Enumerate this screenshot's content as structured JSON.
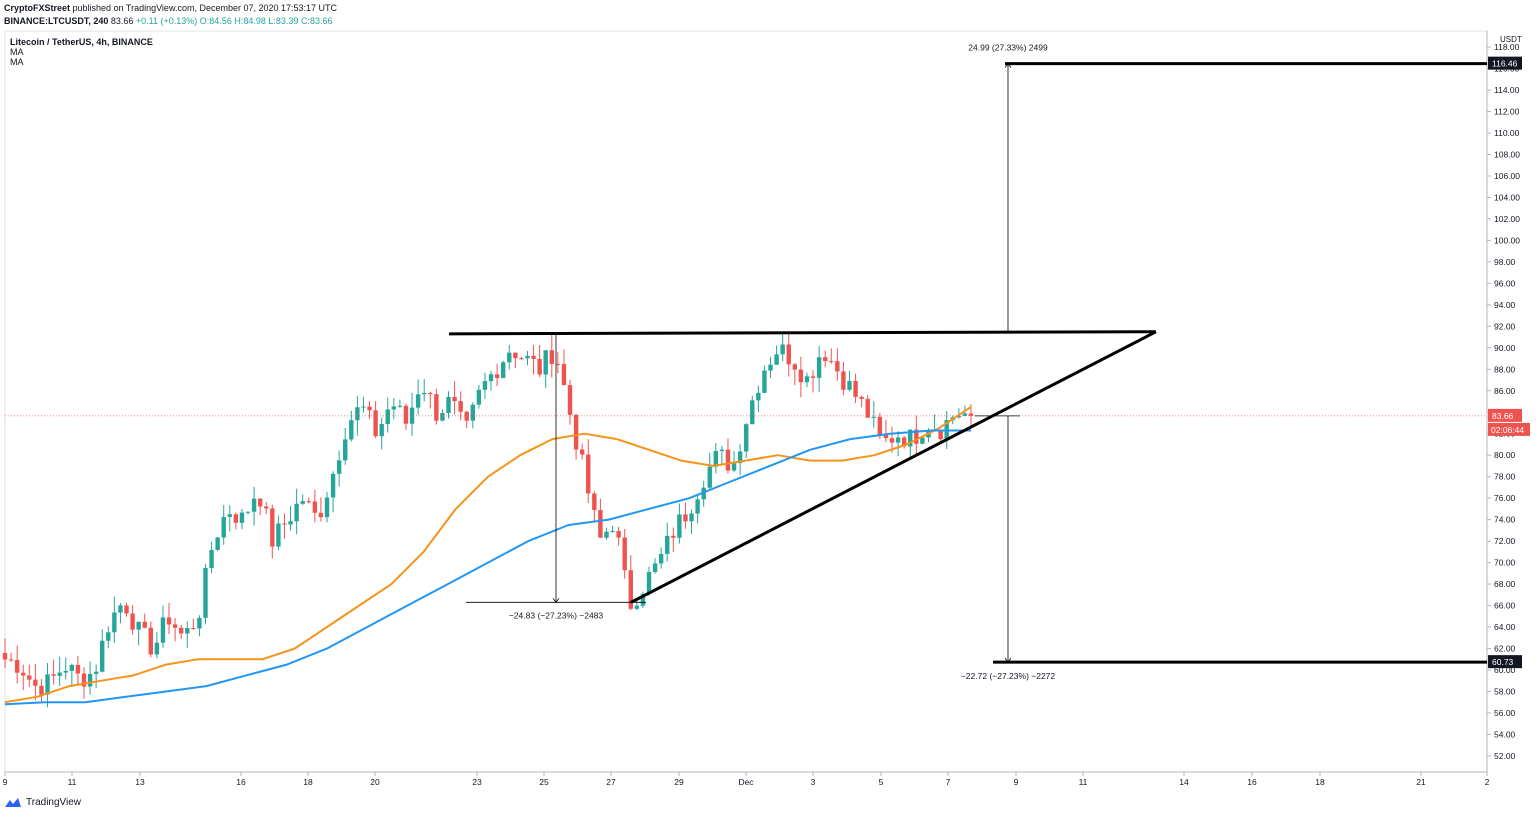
{
  "header": {
    "author": "CryptoFXStreet",
    "published": "published on TradingView.com, December 07, 2020 17:53:17 UTC",
    "symbol_line": "BINANCE:LTCUSDT, 240",
    "last": "83.66",
    "change": "+0.11 (+0.13%)",
    "open": "O:84.56",
    "high": "H:84.98",
    "low": "L:83.39",
    "close": "C:83.66"
  },
  "legend": {
    "title": "Litecoin / TetherUS, 4h, BINANCE",
    "ma1": "MA",
    "ma2": "MA"
  },
  "axis": {
    "currency": "USDT",
    "price_tag": "83.66",
    "countdown": "02:06:44",
    "tag_top": "116.46",
    "tag_bottom": "60.73"
  },
  "annotations": {
    "top_measure": "24.99 (27.33%) 2499",
    "left_measure": "−24.83 (−27.23%) −2483",
    "bottom_measure": "−22.72 (−27.23%) −2272"
  },
  "footer": {
    "brand": "TradingView"
  },
  "colors": {
    "up": "#26a69a",
    "down": "#ef5350",
    "ma_fast": "#f7931a",
    "ma_slow": "#2196f3",
    "tag_red": "#ef5350",
    "tag_black": "#131722",
    "price_line": "#ef5350"
  },
  "chart_data": {
    "type": "candlestick",
    "title": "Litecoin / TetherUS, 4h, BINANCE",
    "ylim": [
      50.5,
      119.5
    ],
    "y_ticks": [
      52,
      54,
      56,
      58,
      60,
      62,
      64,
      66,
      68,
      70,
      72,
      74,
      76,
      78,
      80,
      82,
      84,
      86,
      88,
      90,
      92,
      94,
      96,
      98,
      100,
      102,
      104,
      106,
      108,
      110,
      112,
      114,
      116,
      118
    ],
    "x_ticks": [
      "9",
      "11",
      "13",
      "16",
      "18",
      "20",
      "23",
      "25",
      "27",
      "29",
      "Dec",
      "3",
      "5",
      "7",
      "9",
      "11",
      "14",
      "16",
      "18",
      "21",
      "2"
    ],
    "price_anchors": [
      61,
      60.5,
      58.5,
      58.8,
      60.5,
      59.2,
      59.8,
      64.5,
      66.5,
      63.5,
      62,
      65,
      63,
      65,
      72,
      75,
      74,
      77,
      72,
      74,
      76,
      74,
      78,
      83,
      84.5,
      82,
      85,
      83,
      87,
      84,
      85,
      82,
      86,
      88,
      90,
      89,
      88,
      90,
      84,
      78,
      72,
      74,
      66,
      68,
      70,
      73,
      75,
      78,
      80,
      79,
      84,
      88,
      90,
      89,
      87,
      90,
      88,
      86,
      84,
      81,
      82,
      81.5,
      83,
      82.5,
      84,
      83.66
    ],
    "ma_fast": [
      57,
      57.5,
      58.5,
      59,
      59.5,
      60.5,
      61,
      61,
      61,
      62,
      64,
      66,
      68,
      71,
      75,
      78,
      80,
      81.5,
      82,
      81.5,
      80.5,
      79.5,
      79,
      79.5,
      80,
      79.5,
      79.5,
      80,
      81,
      82.5,
      84.5
    ],
    "ma_slow": [
      56.8,
      57,
      57,
      57.5,
      58,
      58.5,
      59.5,
      60.5,
      62,
      64,
      66,
      68,
      70,
      72,
      73.5,
      74,
      75,
      76,
      77.5,
      79,
      80.5,
      81.5,
      82,
      82.3,
      82.3
    ],
    "lines": [
      {
        "name": "resistance",
        "from": [
          "23",
          91.3
        ],
        "to": [
          "14",
          91.5
        ]
      },
      {
        "name": "support",
        "from": [
          "27",
          66.3
        ],
        "to": [
          "14",
          91.5
        ]
      },
      {
        "name": "target-high",
        "value": 116.46
      },
      {
        "name": "target-low",
        "value": 60.73
      }
    ],
    "last_price": 83.66
  }
}
